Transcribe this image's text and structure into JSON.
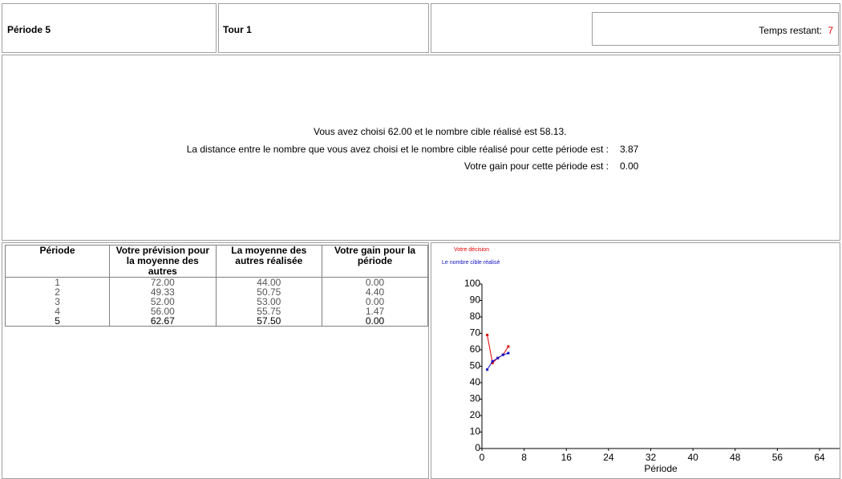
{
  "header": {
    "period": "Période 5",
    "round": "Tour 1",
    "time_label": "Temps restant:",
    "time_value": 7
  },
  "message": {
    "line1": "Vous avez choisi 62.00 et le nombre cible réalisé est 58.13.",
    "distance_label": "La distance entre le nombre que vous avez choisi et le nombre cible réalisé pour cette période est :",
    "distance_value": "3.87",
    "gain_label": "Votre gain pour cette période est :",
    "gain_value": "0.00"
  },
  "table": {
    "columns": [
      "Période",
      "Votre prévision pour la moyenne des autres",
      "La moyenne des autres réalisée",
      "Votre gain pour la période"
    ],
    "rows": [
      [
        "1",
        "72.00",
        "44.00",
        "0.00"
      ],
      [
        "2",
        "49.33",
        "50.75",
        "4.40"
      ],
      [
        "3",
        "52.00",
        "53.00",
        "0.00"
      ],
      [
        "4",
        "56.00",
        "55.75",
        "1.47"
      ],
      [
        "5",
        "62.67",
        "57.50",
        "0.00"
      ]
    ]
  },
  "chart_data": {
    "type": "line",
    "x_label": "Période",
    "x": [
      1,
      2,
      3,
      4,
      5
    ],
    "series": [
      {
        "name": "Votre décision",
        "color": "#e00000",
        "values": [
          69,
          52,
          55,
          57,
          62
        ]
      },
      {
        "name": "Le nombre cible réalisé",
        "color": "#1010c0",
        "values": [
          48,
          53,
          55,
          57,
          58
        ]
      }
    ],
    "xlim": [
      0,
      64
    ],
    "xticks": [
      0,
      8,
      16,
      24,
      32,
      40,
      48,
      56,
      64
    ],
    "ylim": [
      0,
      100
    ],
    "yticks": [
      0,
      10,
      20,
      30,
      40,
      50,
      60,
      70,
      80,
      90,
      100
    ]
  }
}
